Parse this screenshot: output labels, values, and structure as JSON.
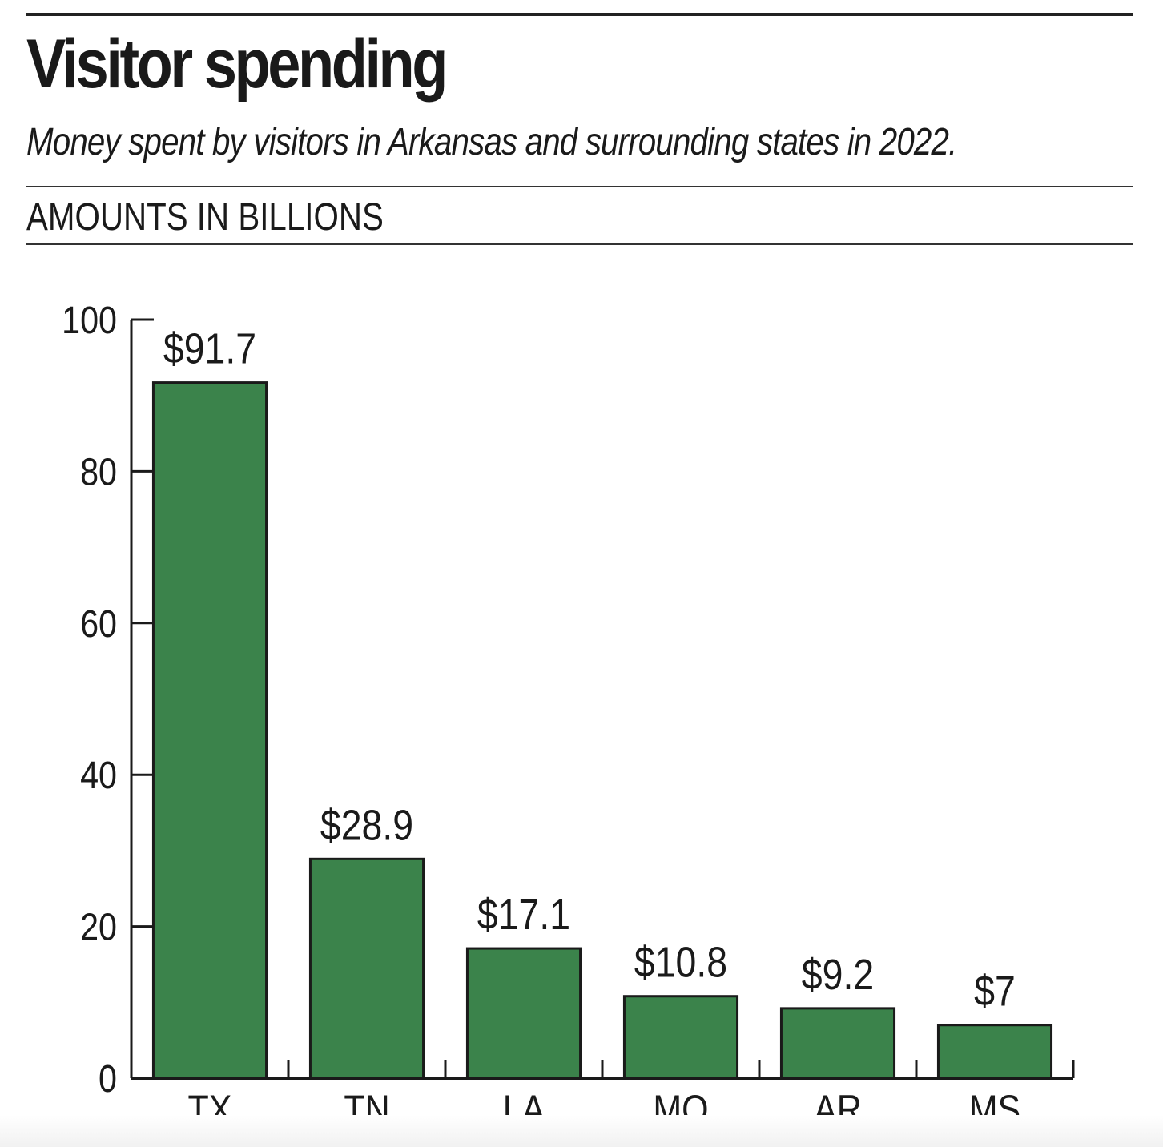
{
  "header": {
    "title": "Visitor spending",
    "subtitle": "Money spent by visitors in Arkansas and surrounding states in 2022.",
    "units": "AMOUNTS IN BILLIONS"
  },
  "colors": {
    "bar": "#3b834b",
    "outline": "#1a1a1a"
  },
  "chart_data": {
    "type": "bar",
    "title": "Visitor spending",
    "subtitle": "Money spent by visitors in Arkansas and surrounding states in 2022.",
    "ylabel": "AMOUNTS IN BILLIONS",
    "xlabel": "",
    "categories": [
      "TX",
      "TN",
      "LA",
      "MO",
      "AR",
      "MS"
    ],
    "values": [
      91.7,
      28.9,
      17.1,
      10.8,
      9.2,
      7
    ],
    "data_labels": [
      "$91.7",
      "$28.9",
      "$17.1",
      "$10.8",
      "$9.2",
      "$7"
    ],
    "ylim": [
      0,
      100
    ],
    "yticks": [
      0,
      20,
      40,
      60,
      80,
      100
    ],
    "grid": false,
    "legend": "none"
  }
}
